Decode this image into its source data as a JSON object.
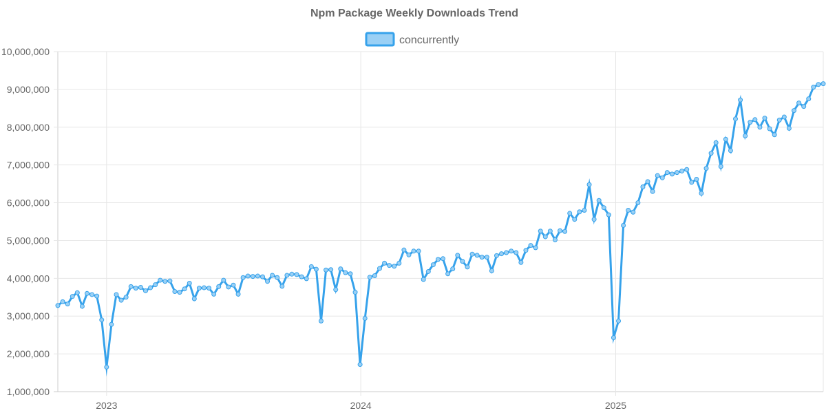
{
  "chart_data": {
    "type": "line",
    "title": "Npm Package Weekly Downloads Trend",
    "legend": {
      "placement": "top-center"
    },
    "grid": true,
    "colors": {
      "line": "#36a2eb",
      "fill": "#9ad0f5",
      "grid": "#e6e6e6",
      "text": "#666666"
    },
    "x_axis": {
      "type": "date",
      "range": [
        "2022-10-23",
        "2025-10-26"
      ],
      "tick_labels": [
        "2023",
        "2024",
        "2025"
      ],
      "tick_dates": [
        "2023-01-01",
        "2024-01-01",
        "2025-01-01"
      ]
    },
    "y_axis": {
      "range": [
        1000000,
        10000000
      ],
      "tick_labels": [
        "1,000,000",
        "2,000,000",
        "3,000,000",
        "4,000,000",
        "5,000,000",
        "6,000,000",
        "7,000,000",
        "8,000,000",
        "9,000,000",
        "10,000,000"
      ],
      "tick_values": [
        1000000,
        2000000,
        3000000,
        4000000,
        5000000,
        6000000,
        7000000,
        8000000,
        9000000,
        10000000
      ]
    },
    "series": [
      {
        "name": "concurrently",
        "points": [
          [
            "2022-10-23",
            3280000
          ],
          [
            "2022-10-30",
            3380000
          ],
          [
            "2022-11-06",
            3320000
          ],
          [
            "2022-11-13",
            3520000
          ],
          [
            "2022-11-20",
            3620000
          ],
          [
            "2022-11-27",
            3260000
          ],
          [
            "2022-12-04",
            3600000
          ],
          [
            "2022-12-11",
            3570000
          ],
          [
            "2022-12-18",
            3530000
          ],
          [
            "2022-12-25",
            2900000
          ],
          [
            "2023-01-01",
            1650000
          ],
          [
            "2023-01-08",
            2780000
          ],
          [
            "2023-01-15",
            3570000
          ],
          [
            "2023-01-22",
            3420000
          ],
          [
            "2023-01-29",
            3500000
          ],
          [
            "2023-02-05",
            3780000
          ],
          [
            "2023-02-12",
            3740000
          ],
          [
            "2023-02-19",
            3760000
          ],
          [
            "2023-02-26",
            3670000
          ],
          [
            "2023-03-05",
            3750000
          ],
          [
            "2023-03-12",
            3830000
          ],
          [
            "2023-03-19",
            3950000
          ],
          [
            "2023-03-26",
            3920000
          ],
          [
            "2023-04-02",
            3930000
          ],
          [
            "2023-04-09",
            3650000
          ],
          [
            "2023-04-16",
            3630000
          ],
          [
            "2023-04-23",
            3720000
          ],
          [
            "2023-04-30",
            3870000
          ],
          [
            "2023-05-07",
            3460000
          ],
          [
            "2023-05-14",
            3740000
          ],
          [
            "2023-05-21",
            3750000
          ],
          [
            "2023-05-28",
            3740000
          ],
          [
            "2023-06-04",
            3580000
          ],
          [
            "2023-06-11",
            3780000
          ],
          [
            "2023-06-18",
            3950000
          ],
          [
            "2023-06-25",
            3770000
          ],
          [
            "2023-07-02",
            3820000
          ],
          [
            "2023-07-09",
            3580000
          ],
          [
            "2023-07-16",
            4020000
          ],
          [
            "2023-07-23",
            4060000
          ],
          [
            "2023-07-30",
            4050000
          ],
          [
            "2023-08-06",
            4060000
          ],
          [
            "2023-08-13",
            4040000
          ],
          [
            "2023-08-20",
            3920000
          ],
          [
            "2023-08-27",
            4080000
          ],
          [
            "2023-09-03",
            4020000
          ],
          [
            "2023-09-10",
            3790000
          ],
          [
            "2023-09-17",
            4080000
          ],
          [
            "2023-09-24",
            4110000
          ],
          [
            "2023-10-01",
            4100000
          ],
          [
            "2023-10-08",
            4040000
          ],
          [
            "2023-10-15",
            3990000
          ],
          [
            "2023-10-22",
            4310000
          ],
          [
            "2023-10-29",
            4240000
          ],
          [
            "2023-11-05",
            2870000
          ],
          [
            "2023-11-12",
            4220000
          ],
          [
            "2023-11-19",
            4230000
          ],
          [
            "2023-11-26",
            3700000
          ],
          [
            "2023-12-03",
            4250000
          ],
          [
            "2023-12-10",
            4150000
          ],
          [
            "2023-12-17",
            4120000
          ],
          [
            "2023-12-24",
            3630000
          ],
          [
            "2023-12-31",
            1720000
          ],
          [
            "2024-01-07",
            2940000
          ],
          [
            "2024-01-14",
            4030000
          ],
          [
            "2024-01-21",
            4070000
          ],
          [
            "2024-01-28",
            4260000
          ],
          [
            "2024-02-04",
            4400000
          ],
          [
            "2024-02-11",
            4340000
          ],
          [
            "2024-02-18",
            4320000
          ],
          [
            "2024-02-25",
            4400000
          ],
          [
            "2024-03-03",
            4750000
          ],
          [
            "2024-03-10",
            4620000
          ],
          [
            "2024-03-17",
            4720000
          ],
          [
            "2024-03-24",
            4720000
          ],
          [
            "2024-03-31",
            3970000
          ],
          [
            "2024-04-07",
            4180000
          ],
          [
            "2024-04-14",
            4360000
          ],
          [
            "2024-04-21",
            4500000
          ],
          [
            "2024-04-28",
            4520000
          ],
          [
            "2024-05-05",
            4120000
          ],
          [
            "2024-05-12",
            4250000
          ],
          [
            "2024-05-19",
            4610000
          ],
          [
            "2024-05-26",
            4450000
          ],
          [
            "2024-06-02",
            4300000
          ],
          [
            "2024-06-09",
            4640000
          ],
          [
            "2024-06-16",
            4610000
          ],
          [
            "2024-06-23",
            4560000
          ],
          [
            "2024-06-30",
            4560000
          ],
          [
            "2024-07-07",
            4200000
          ],
          [
            "2024-07-14",
            4600000
          ],
          [
            "2024-07-21",
            4650000
          ],
          [
            "2024-07-28",
            4680000
          ],
          [
            "2024-08-04",
            4720000
          ],
          [
            "2024-08-11",
            4680000
          ],
          [
            "2024-08-18",
            4420000
          ],
          [
            "2024-08-25",
            4740000
          ],
          [
            "2024-09-01",
            4870000
          ],
          [
            "2024-09-08",
            4810000
          ],
          [
            "2024-09-15",
            5250000
          ],
          [
            "2024-09-22",
            5100000
          ],
          [
            "2024-09-29",
            5250000
          ],
          [
            "2024-10-06",
            5020000
          ],
          [
            "2024-10-13",
            5260000
          ],
          [
            "2024-10-20",
            5240000
          ],
          [
            "2024-10-27",
            5720000
          ],
          [
            "2024-11-03",
            5560000
          ],
          [
            "2024-11-10",
            5760000
          ],
          [
            "2024-11-17",
            5800000
          ],
          [
            "2024-11-24",
            6480000
          ],
          [
            "2024-12-01",
            5560000
          ],
          [
            "2024-12-08",
            6060000
          ],
          [
            "2024-12-15",
            5870000
          ],
          [
            "2024-12-22",
            5680000
          ],
          [
            "2024-12-29",
            2430000
          ],
          [
            "2025-01-05",
            2870000
          ],
          [
            "2025-01-12",
            5400000
          ],
          [
            "2025-01-19",
            5800000
          ],
          [
            "2025-01-26",
            5750000
          ],
          [
            "2025-02-02",
            6000000
          ],
          [
            "2025-02-09",
            6420000
          ],
          [
            "2025-02-16",
            6560000
          ],
          [
            "2025-02-23",
            6300000
          ],
          [
            "2025-03-02",
            6720000
          ],
          [
            "2025-03-09",
            6660000
          ],
          [
            "2025-03-16",
            6800000
          ],
          [
            "2025-03-23",
            6760000
          ],
          [
            "2025-03-30",
            6800000
          ],
          [
            "2025-04-06",
            6840000
          ],
          [
            "2025-04-13",
            6880000
          ],
          [
            "2025-04-20",
            6540000
          ],
          [
            "2025-04-27",
            6620000
          ],
          [
            "2025-05-04",
            6250000
          ],
          [
            "2025-05-11",
            6910000
          ],
          [
            "2025-05-18",
            7310000
          ],
          [
            "2025-05-25",
            7590000
          ],
          [
            "2025-06-01",
            6960000
          ],
          [
            "2025-06-08",
            7680000
          ],
          [
            "2025-06-15",
            7380000
          ],
          [
            "2025-06-22",
            8220000
          ],
          [
            "2025-06-29",
            8720000
          ],
          [
            "2025-07-06",
            7770000
          ],
          [
            "2025-07-13",
            8130000
          ],
          [
            "2025-07-20",
            8200000
          ],
          [
            "2025-07-27",
            8000000
          ],
          [
            "2025-08-03",
            8240000
          ],
          [
            "2025-08-10",
            7960000
          ],
          [
            "2025-08-17",
            7800000
          ],
          [
            "2025-08-24",
            8190000
          ],
          [
            "2025-08-31",
            8270000
          ],
          [
            "2025-09-07",
            7970000
          ],
          [
            "2025-09-14",
            8440000
          ],
          [
            "2025-09-21",
            8640000
          ],
          [
            "2025-09-28",
            8550000
          ],
          [
            "2025-10-05",
            8750000
          ],
          [
            "2025-10-12",
            9060000
          ],
          [
            "2025-10-19",
            9130000
          ],
          [
            "2025-10-26",
            9150000
          ]
        ]
      }
    ]
  }
}
